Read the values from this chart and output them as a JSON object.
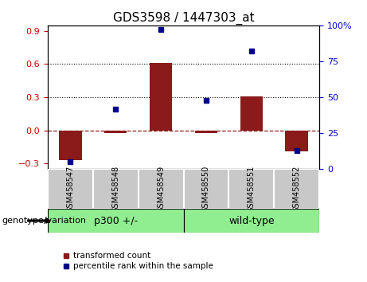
{
  "title": "GDS3598 / 1447303_at",
  "samples": [
    "GSM458547",
    "GSM458548",
    "GSM458549",
    "GSM458550",
    "GSM458551",
    "GSM458552"
  ],
  "transformed_count": [
    -0.27,
    -0.02,
    0.61,
    -0.02,
    0.31,
    -0.19
  ],
  "percentile_rank": [
    5,
    42,
    97,
    48,
    82,
    13
  ],
  "group1_label": "p300 +/-",
  "group1_indices": [
    0,
    1,
    2
  ],
  "group2_label": "wild-type",
  "group2_indices": [
    3,
    4,
    5
  ],
  "group_label": "genotype/variation",
  "group_color": "#90EE90",
  "sample_box_color": "#C8C8C8",
  "ylim_left": [
    -0.35,
    0.95
  ],
  "ylim_right": [
    0,
    100
  ],
  "yticks_left": [
    -0.3,
    0.0,
    0.3,
    0.6,
    0.9
  ],
  "yticks_right": [
    0,
    25,
    50,
    75,
    100
  ],
  "hlines": [
    0.3,
    0.6
  ],
  "hline_zero": 0.0,
  "bar_color": "#8B1A1A",
  "dot_color": "#00008B",
  "bar_width": 0.5,
  "legend_items": [
    "transformed count",
    "percentile rank within the sample"
  ],
  "tick_label_color_left": "#CC0000",
  "tick_label_color_right": "#0000CC",
  "title_fontsize": 11,
  "tick_fontsize": 8,
  "sample_fontsize": 7,
  "group_fontsize": 9,
  "legend_fontsize": 7.5,
  "genotype_label_fontsize": 8
}
